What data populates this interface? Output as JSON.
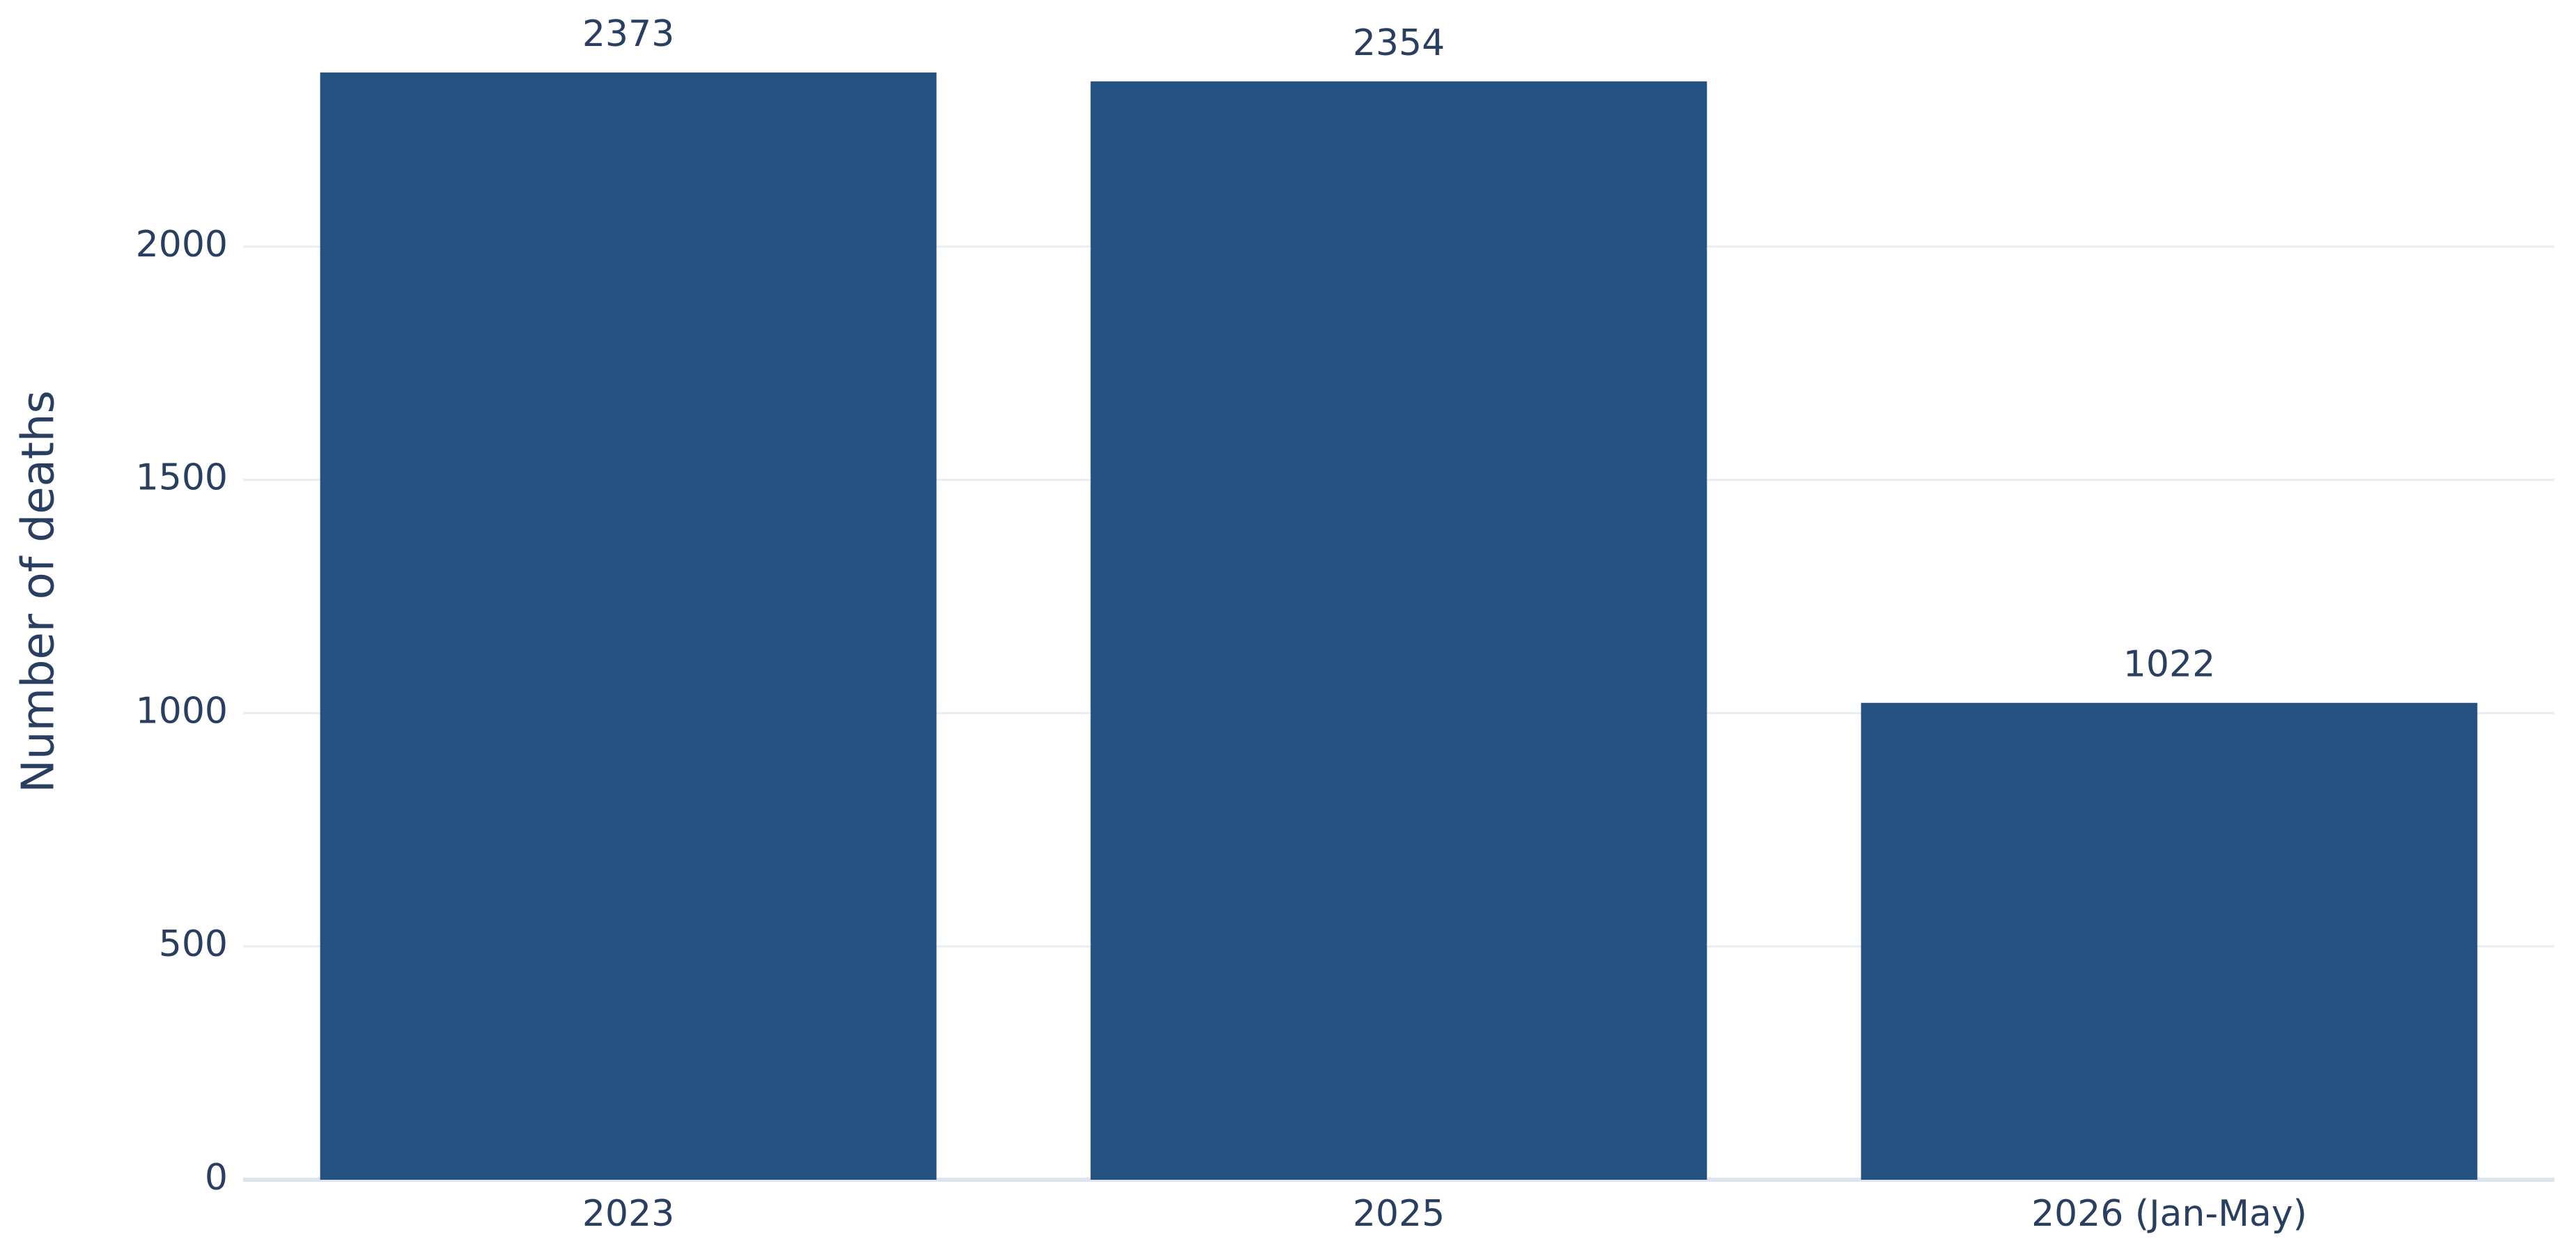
{
  "chart_data": {
    "type": "bar",
    "y_label": "Number of deaths",
    "categories": [
      "2023",
      "2025",
      "2026 (Jan-May)"
    ],
    "values": [
      2373,
      2354,
      1022
    ],
    "color": "#245180",
    "ylim": [
      0,
      2500
    ],
    "yticks": [
      0,
      500,
      1000,
      1500,
      2000
    ],
    "grid": true
  }
}
